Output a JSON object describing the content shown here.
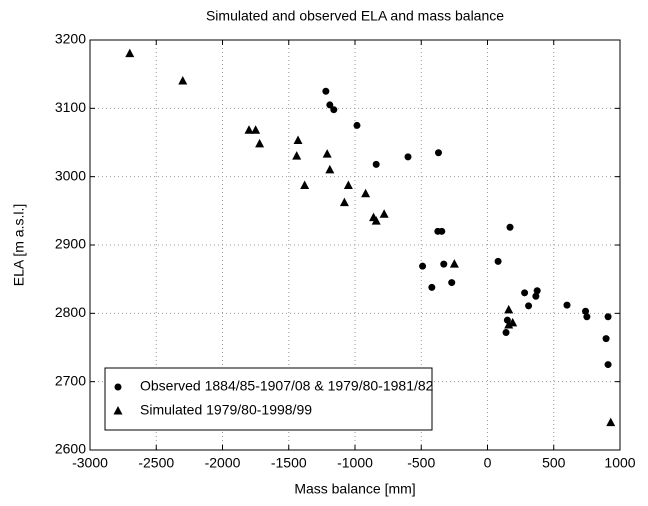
{
  "chart_data": {
    "type": "scatter",
    "title": "Simulated and observed ELA and mass balance",
    "x_label": "Mass balance [mm]",
    "y_label": "ELA [m a.s.l.]",
    "xlim": [
      -3000,
      1000
    ],
    "xticks": [
      -3000,
      -2500,
      -2000,
      -1500,
      -1000,
      -500,
      0,
      500,
      1000
    ],
    "ylim": [
      2600,
      3200
    ],
    "yticks": [
      2600,
      2700,
      2800,
      2900,
      3000,
      3100,
      3200
    ],
    "grid": true,
    "legend": "lower left",
    "series": [
      {
        "name": "Observed 1884/85-1907/08 & 1979/80-1981/82",
        "color": "#000000",
        "marker": "circle",
        "x": [
          -1220,
          -1190,
          -1160,
          -985,
          -840,
          -600,
          -370,
          -375,
          -345,
          -330,
          -490,
          -420,
          -270,
          80,
          170,
          140,
          150,
          280,
          310,
          365,
          375,
          600,
          740,
          750,
          910,
          895,
          910
        ],
        "values": [
          3125,
          3105,
          3098,
          3075,
          3018,
          3029,
          3035,
          2920,
          2920,
          2872,
          2869,
          2838,
          2845,
          2876,
          2926,
          2772,
          2790,
          2830,
          2811,
          2825,
          2833,
          2812,
          2803,
          2795,
          2795,
          2763,
          2725
        ]
      },
      {
        "name": "Simulated 1979/80-1998/99",
        "color": "#000000",
        "marker": "triangle",
        "x": [
          -2700,
          -2300,
          -1800,
          -1750,
          -1720,
          -1430,
          -1440,
          -1380,
          -1210,
          -1190,
          -1050,
          -1080,
          -920,
          -860,
          -840,
          -780,
          -250,
          160,
          190,
          160,
          930
        ],
        "values": [
          3180,
          3140,
          3068,
          3068,
          3048,
          3053,
          3030,
          2987,
          3033,
          3010,
          2987,
          2962,
          2975,
          2940,
          2935,
          2945,
          2872,
          2805,
          2786,
          2783,
          2640
        ]
      }
    ]
  }
}
